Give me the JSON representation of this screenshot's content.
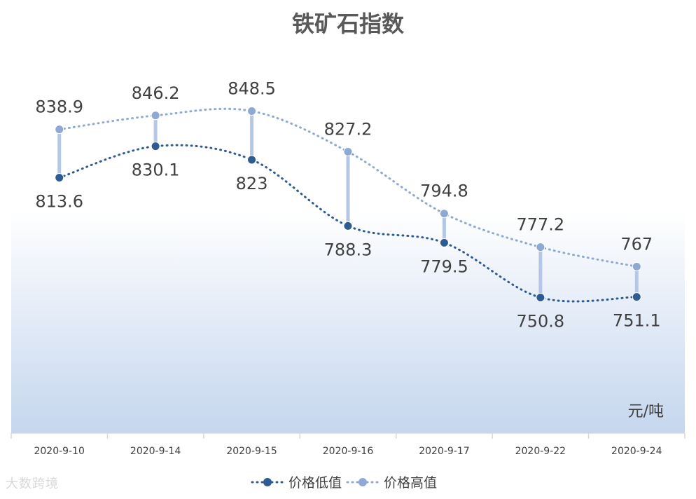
{
  "watermark": "大数跨境",
  "chart_data": {
    "type": "line",
    "title": "铁矿石指数",
    "unit_label": "元/吨",
    "categories": [
      "2020-9-10",
      "2020-9-14",
      "2020-9-15",
      "2020-9-16",
      "2020-9-17",
      "2020-9-22",
      "2020-9-24"
    ],
    "series": [
      {
        "name": "价格低值",
        "values": [
          813.6,
          830.1,
          823,
          788.3,
          779.5,
          750.8,
          751.1
        ],
        "color": "#2f5b93"
      },
      {
        "name": "价格高值",
        "values": [
          838.9,
          846.2,
          848.5,
          827.2,
          794.8,
          777.2,
          767
        ],
        "color": "#8ea9d3"
      }
    ],
    "high_low_lines": true,
    "smooth": true,
    "line_style": "dotted",
    "plot_background": "gradient white to light blue",
    "legend_position": "bottom",
    "grid": false,
    "ylim": [
      690,
      870
    ],
    "colors": {
      "title": "#595959",
      "label": "#404040",
      "axis": "#d9d9d9",
      "gradient_bottom": "#c5d6ee",
      "hl_line": "#b4c7e7"
    }
  }
}
